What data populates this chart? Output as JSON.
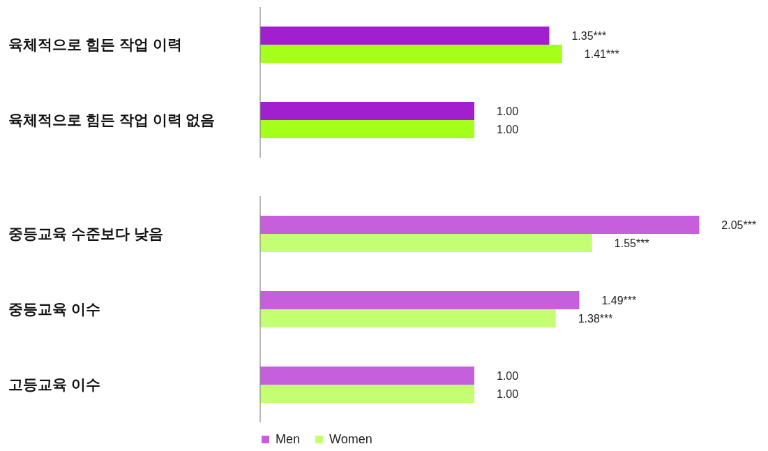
{
  "chart_data": [
    {
      "type": "bar",
      "orientation": "horizontal",
      "categories": [
        "육체적으로 힘든 작업 이력",
        "육체적으로 힘든 작업 이력 없음"
      ],
      "tick_labels": "y",
      "legend": false,
      "series": [
        {
          "color": "#a21fcf",
          "values": [
            1.35,
            1.0
          ],
          "value_labels": [
            "1.35***",
            "1.00"
          ]
        },
        {
          "color": "#a4ff1a",
          "values": [
            1.41,
            1.0
          ],
          "value_labels": [
            "1.41***",
            "1.00"
          ]
        }
      ]
    },
    {
      "type": "bar",
      "orientation": "horizontal",
      "categories": [
        "중등교육 수준보다 낮음",
        "중등교육 이수",
        "고등교육 이수"
      ],
      "tick_labels": "y",
      "legend": "bottom",
      "series": [
        {
          "name": "Men",
          "color": "#c55fdc",
          "values": [
            2.05,
            1.49,
            1.0
          ],
          "value_labels": [
            "2.05***",
            "1.49***",
            "1.00"
          ]
        },
        {
          "name": "Women",
          "color": "#c4ff73",
          "values": [
            1.55,
            1.38,
            1.0
          ],
          "value_labels": [
            "1.55***",
            "1.38***",
            "1.00"
          ]
        }
      ]
    }
  ]
}
